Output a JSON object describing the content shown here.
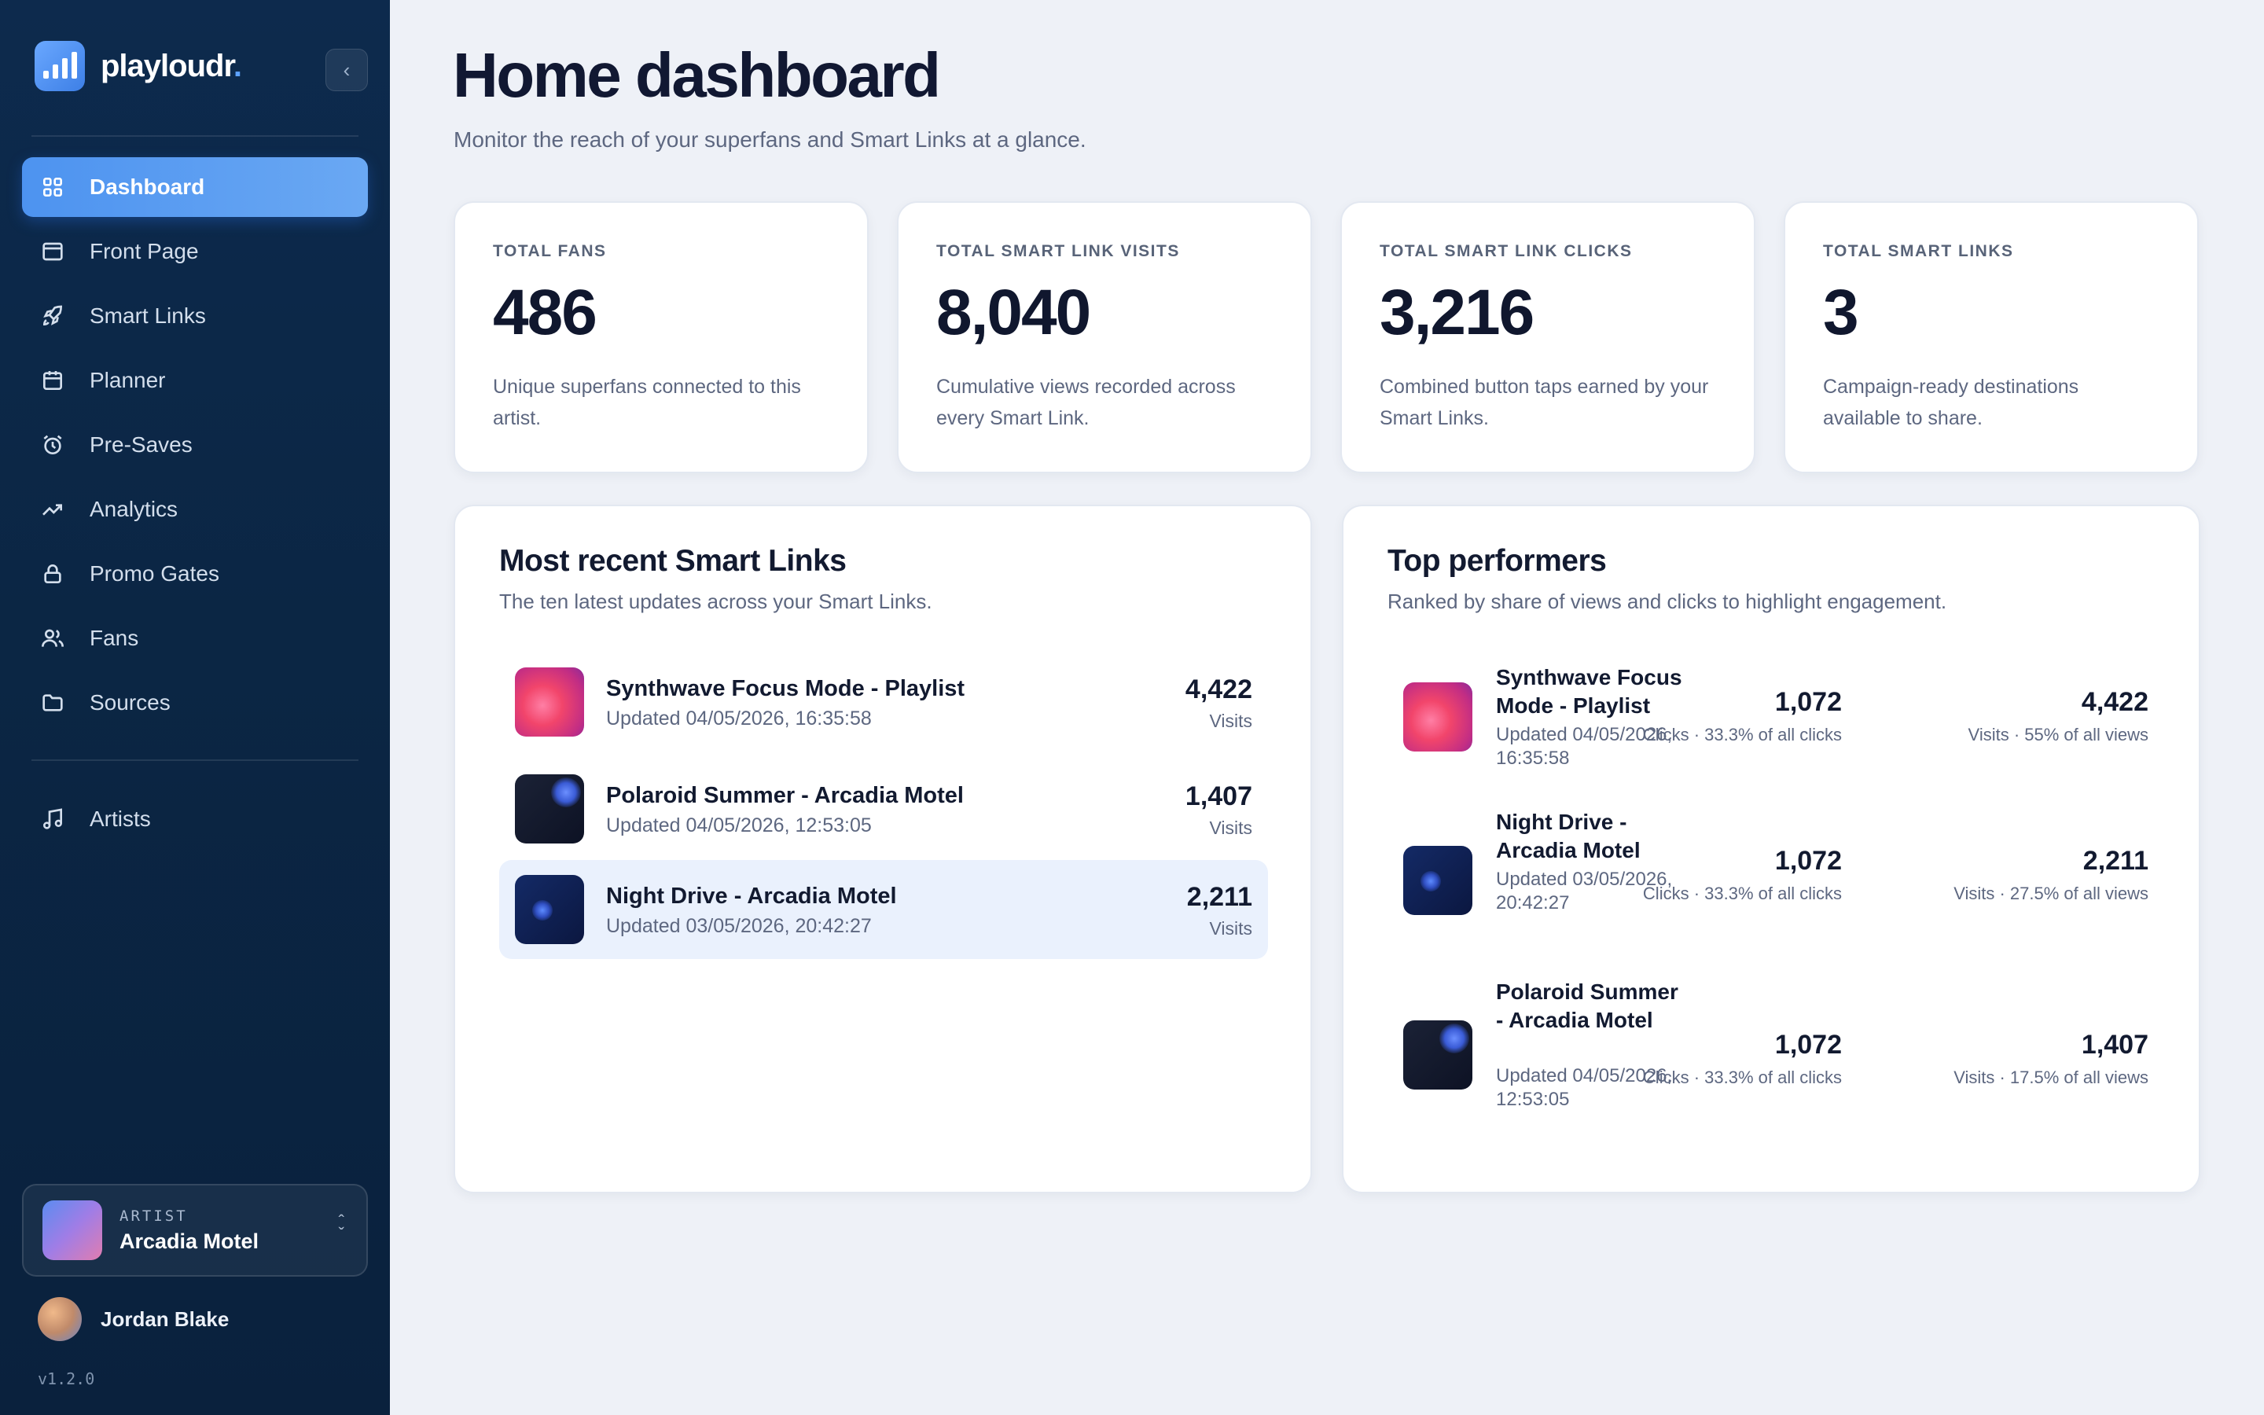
{
  "brand": {
    "name": "playloudr",
    "dot": "."
  },
  "nav": {
    "items": [
      {
        "label": "Dashboard",
        "icon": "grid-icon"
      },
      {
        "label": "Front Page",
        "icon": "window-icon"
      },
      {
        "label": "Smart Links",
        "icon": "rocket-icon"
      },
      {
        "label": "Planner",
        "icon": "calendar-icon"
      },
      {
        "label": "Pre-Saves",
        "icon": "alarm-clock-icon"
      },
      {
        "label": "Analytics",
        "icon": "trend-up-icon"
      },
      {
        "label": "Promo Gates",
        "icon": "lock-icon"
      },
      {
        "label": "Fans",
        "icon": "users-icon"
      },
      {
        "label": "Sources",
        "icon": "folder-icon"
      }
    ],
    "artists": {
      "label": "Artists",
      "icon": "music-note-icon"
    }
  },
  "artist_switcher": {
    "label": "ARTIST",
    "name": "Arcadia Motel"
  },
  "user": {
    "name": "Jordan Blake"
  },
  "version": "v1.2.0",
  "header": {
    "title": "Home dashboard",
    "subtitle": "Monitor the reach of your superfans and Smart Links at a glance."
  },
  "stats": [
    {
      "label": "TOTAL FANS",
      "value": "486",
      "desc": "Unique superfans connected to this artist."
    },
    {
      "label": "TOTAL SMART LINK VISITS",
      "value": "8,040",
      "desc": "Cumulative views recorded across every Smart Link."
    },
    {
      "label": "TOTAL SMART LINK CLICKS",
      "value": "3,216",
      "desc": "Combined button taps earned by your Smart Links."
    },
    {
      "label": "TOTAL SMART LINKS",
      "value": "3",
      "desc": "Campaign-ready destinations available to share."
    }
  ],
  "recent": {
    "title": "Most recent Smart Links",
    "subtitle": "The ten latest updates across your Smart Links.",
    "rows": [
      {
        "name": "Synthwave Focus Mode - Playlist",
        "updated": "Updated 04/05/2026, 16:35:58",
        "visits": "4,422",
        "unit": "Visits"
      },
      {
        "name": "Polaroid Summer - Arcadia Motel",
        "updated": "Updated 04/05/2026, 12:53:05",
        "visits": "1,407",
        "unit": "Visits"
      },
      {
        "name": "Night Drive - Arcadia Motel",
        "updated": "Updated 03/05/2026, 20:42:27",
        "visits": "2,211",
        "unit": "Visits"
      }
    ]
  },
  "top": {
    "title": "Top performers",
    "subtitle": "Ranked by share of views and clicks to highlight engagement.",
    "rows": [
      {
        "name": "Synthwave Focus Mode - Playlist",
        "updated": "Updated 04/05/2026, 16:35:58",
        "clicks": "1,072",
        "clicks_sub": "Clicks · 33.3% of all clicks",
        "visits": "4,422",
        "visits_sub": "Visits · 55% of all views"
      },
      {
        "name": "Night Drive - Arcadia Motel",
        "updated": "Updated 03/05/2026, 20:42:27",
        "clicks": "1,072",
        "clicks_sub": "Clicks · 33.3% of all clicks",
        "visits": "2,211",
        "visits_sub": "Visits · 27.5% of all views"
      },
      {
        "name": "Polaroid Summer - Arcadia Motel",
        "updated": "Updated 04/05/2026, 12:53:05",
        "clicks": "1,072",
        "clicks_sub": "Clicks · 33.3% of all clicks",
        "visits": "1,407",
        "visits_sub": "Visits · 17.5% of all views"
      }
    ]
  },
  "colors": {
    "accent": "#4d93f0",
    "sidebar": "#0b2644",
    "background": "#eef1f7"
  }
}
